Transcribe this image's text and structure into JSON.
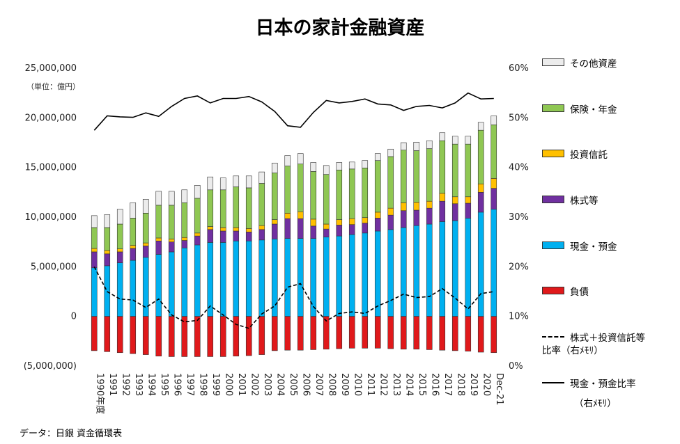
{
  "title": "日本の家計金融資産",
  "source_note": "データ：日銀 資金循環表",
  "colors": {
    "other": "#ececec",
    "insurance": "#8fc753",
    "trust": "#ffc000",
    "stocks": "#7030a0",
    "cash": "#00b0f0",
    "debt": "#e0191b"
  },
  "chart_data": {
    "type": "bar",
    "stacked": true,
    "unit_label": "（単位：億円）",
    "categories": [
      "1990年度",
      "1991",
      "1992",
      "1993",
      "1994",
      "1995",
      "1996",
      "1997",
      "1998",
      "1999",
      "2000",
      "2001",
      "2002",
      "2003",
      "2004",
      "2005",
      "2006",
      "2007",
      "2008",
      "2009",
      "2010",
      "2011",
      "2012",
      "2013",
      "2014",
      "2015",
      "2016",
      "2017",
      "2018",
      "2019",
      "2020",
      "Dec-21"
    ],
    "series": [
      {
        "key": "cash",
        "name": "現金・預金",
        "values": [
          4900000,
          5100000,
          5400000,
          5650000,
          5950000,
          6250000,
          6500000,
          6900000,
          7200000,
          7450000,
          7450000,
          7600000,
          7600000,
          7700000,
          7800000,
          7850000,
          7850000,
          7850000,
          8000000,
          8100000,
          8250000,
          8400000,
          8600000,
          8750000,
          8950000,
          9150000,
          9300000,
          9550000,
          9650000,
          9900000,
          10500000,
          10800000
        ]
      },
      {
        "key": "stocks",
        "name": "株式等",
        "values": [
          1600000,
          1200000,
          1100000,
          1200000,
          1150000,
          1350000,
          1000000,
          750000,
          900000,
          1300000,
          1150000,
          1000000,
          900000,
          1050000,
          1500000,
          2000000,
          2000000,
          1250000,
          800000,
          1100000,
          1000000,
          1000000,
          1300000,
          1450000,
          1700000,
          1550000,
          1600000,
          2050000,
          1700000,
          1500000,
          2000000,
          2100000
        ]
      },
      {
        "key": "trust",
        "name": "投資信託",
        "values": [
          350000,
          350000,
          300000,
          300000,
          300000,
          300000,
          300000,
          300000,
          300000,
          300000,
          350000,
          350000,
          350000,
          400000,
          450000,
          550000,
          700000,
          700000,
          500000,
          550000,
          600000,
          550000,
          600000,
          700000,
          800000,
          800000,
          700000,
          800000,
          700000,
          650000,
          850000,
          1000000
        ]
      },
      {
        "key": "insurance",
        "name": "保険・年金",
        "values": [
          2100000,
          2300000,
          2500000,
          2750000,
          3000000,
          3300000,
          3400000,
          3500000,
          3500000,
          3700000,
          3800000,
          4100000,
          4100000,
          4250000,
          4700000,
          4750000,
          4800000,
          4800000,
          5000000,
          5000000,
          5000000,
          5000000,
          5200000,
          5200000,
          5300000,
          5200000,
          5300000,
          5300000,
          5300000,
          5300000,
          5400000,
          5400000
        ]
      },
      {
        "key": "other",
        "name": "その他資産",
        "values": [
          1200000,
          1300000,
          1500000,
          1550000,
          1400000,
          1400000,
          1400000,
          1300000,
          1300000,
          1300000,
          1200000,
          1100000,
          1200000,
          1150000,
          1000000,
          1050000,
          1050000,
          900000,
          900000,
          750000,
          700000,
          750000,
          700000,
          750000,
          750000,
          850000,
          800000,
          800000,
          800000,
          800000,
          800000,
          900000
        ]
      },
      {
        "key": "debt",
        "name": "負債",
        "values": [
          -3450000,
          -3550000,
          -3650000,
          -3750000,
          -3850000,
          -4000000,
          -4050000,
          -4050000,
          -4050000,
          -4050000,
          -4050000,
          -4000000,
          -3950000,
          -3850000,
          -3450000,
          -3400000,
          -3400000,
          -3350000,
          -3300000,
          -3250000,
          -3200000,
          -3200000,
          -3200000,
          -3250000,
          -3300000,
          -3300000,
          -3350000,
          -3400000,
          -3450000,
          -3500000,
          -3600000,
          -3650000
        ]
      }
    ],
    "line_series": [
      {
        "key": "cash_ratio",
        "name": "現金・預金比率",
        "name_note": "（右ﾒﾓﾘ）",
        "style": "solid",
        "values": [
          47.5,
          50.4,
          50.2,
          50.1,
          51.0,
          50.3,
          52.3,
          53.9,
          54.4,
          53.0,
          53.9,
          53.9,
          54.3,
          53.2,
          51.3,
          48.4,
          48.1,
          51.1,
          53.5,
          53.0,
          53.3,
          53.8,
          52.8,
          52.6,
          51.5,
          52.3,
          52.5,
          52.0,
          53.0,
          55.0,
          53.8,
          53.9
        ]
      },
      {
        "key": "stock_ratio",
        "name": "株式＋投資信託等",
        "name_line2": "比率（右ﾒﾓﾘ）",
        "style": "dashed",
        "values": [
          20.0,
          15.0,
          13.5,
          13.3,
          11.8,
          13.5,
          10.3,
          8.9,
          9.2,
          12.1,
          10.3,
          8.4,
          7.6,
          10.5,
          12.1,
          15.9,
          16.6,
          12.0,
          9.1,
          10.6,
          10.9,
          10.6,
          12.1,
          13.2,
          14.5,
          13.8,
          14.0,
          15.6,
          13.7,
          11.5,
          14.6,
          15.0
        ]
      }
    ],
    "y_left": {
      "min": -5000000,
      "max": 25000000,
      "ticks": [
        "25,000,000",
        "20,000,000",
        "15,000,000",
        "10,000,000",
        "5,000,000",
        "0",
        "(5,000,000)"
      ],
      "tick_values": [
        25000000,
        20000000,
        15000000,
        10000000,
        5000000,
        0,
        -5000000
      ]
    },
    "y_right": {
      "min": 0,
      "max": 60,
      "ticks": [
        "60%",
        "50%",
        "40%",
        "30%",
        "20%",
        "10%",
        "0%"
      ],
      "tick_values": [
        60,
        50,
        40,
        30,
        20,
        10,
        0
      ]
    },
    "negative_tick_color": "#c0392b",
    "legend": [
      {
        "key": "other",
        "label": "その他資産"
      },
      {
        "key": "insurance",
        "label": "保険・年金"
      },
      {
        "key": "trust",
        "label": "投資信託"
      },
      {
        "key": "stocks",
        "label": "株式等"
      },
      {
        "key": "cash",
        "label": "現金・預金"
      },
      {
        "key": "debt",
        "label": "負債"
      }
    ],
    "legend_lines": {
      "stock_ratio_line1": "株式＋投資信託等",
      "stock_ratio_line2": "比率（右ﾒﾓﾘ）",
      "cash_ratio_line1": "現金・預金比率",
      "cash_ratio_line2": "（右ﾒﾓﾘ）"
    }
  }
}
